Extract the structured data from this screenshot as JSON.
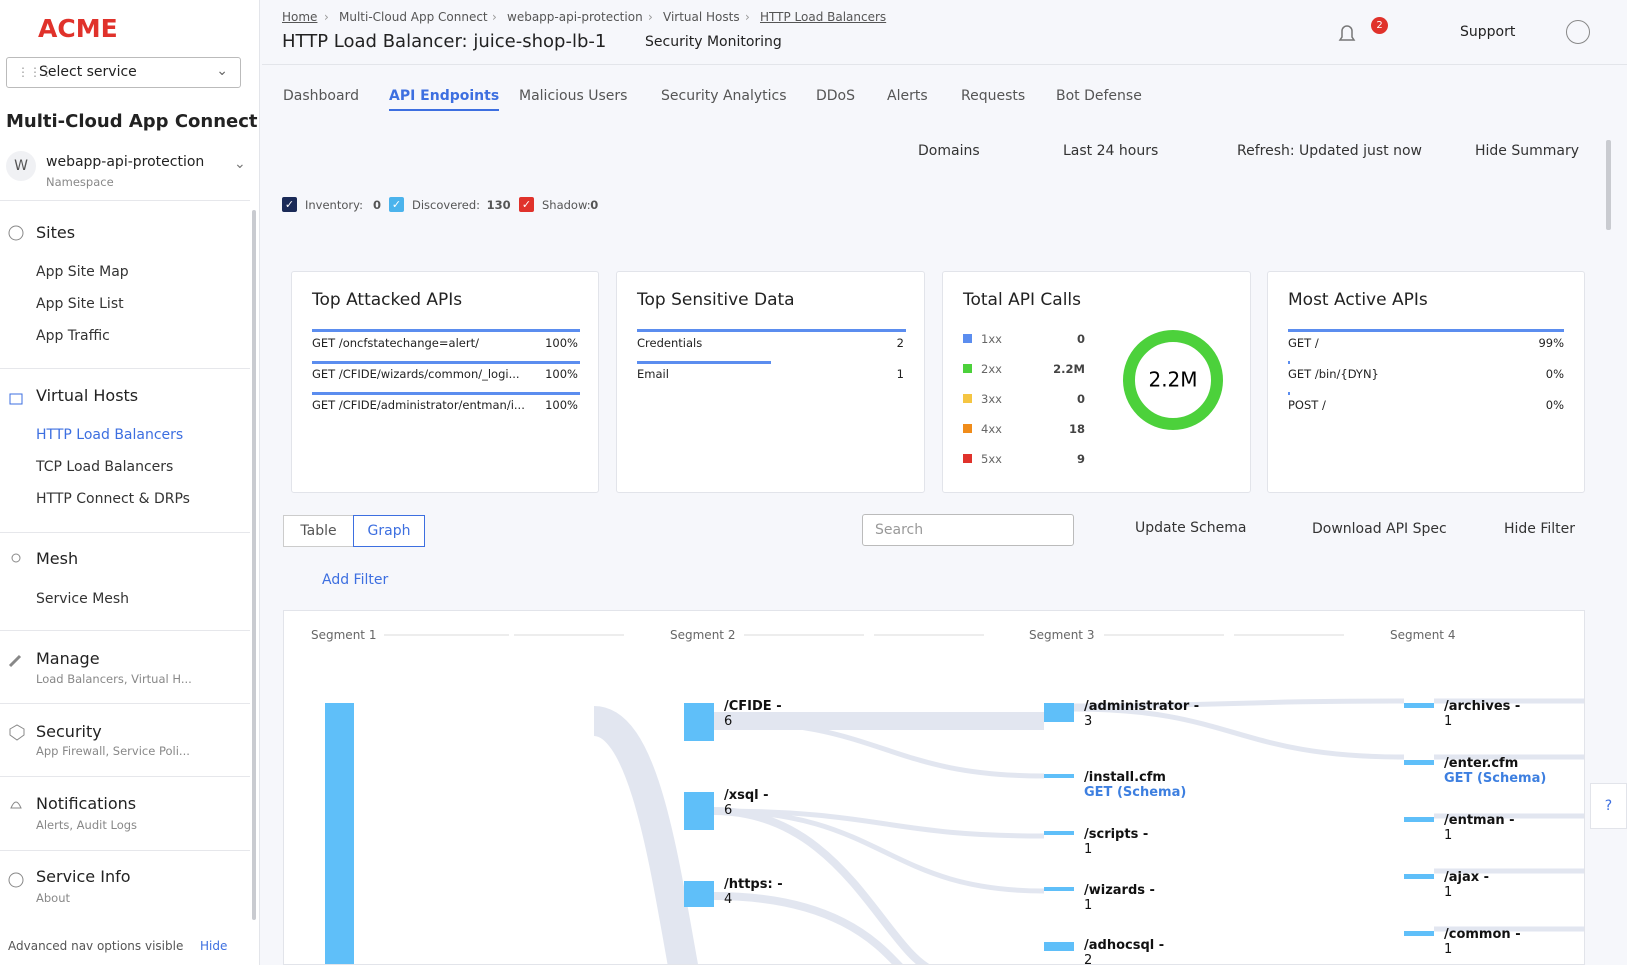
{
  "sidebar": {
    "logo": "ACME",
    "service_select": "Select service",
    "app_title": "Multi-Cloud App Connect",
    "namespace": {
      "avatar": "W",
      "name": "webapp-api-protection",
      "label": "Namespace"
    },
    "sections": [
      {
        "title": "Sites",
        "items": [
          "App Site Map",
          "App Site List",
          "App Traffic"
        ]
      },
      {
        "title": "Virtual Hosts",
        "items": [
          "HTTP Load Balancers",
          "TCP Load Balancers",
          "HTTP Connect & DRPs"
        ]
      },
      {
        "title": "Mesh",
        "items": [
          "Service Mesh"
        ]
      },
      {
        "title": "Manage",
        "subtitle": "Load Balancers, Virtual H..."
      },
      {
        "title": "Security",
        "subtitle": "App Firewall, Service Poli..."
      },
      {
        "title": "Notifications",
        "subtitle": "Alerts, Audit Logs"
      },
      {
        "title": "Service Info",
        "subtitle": "About"
      }
    ],
    "footer": {
      "text": "Advanced nav options visible",
      "link": "Hide"
    }
  },
  "header": {
    "breadcrumbs": [
      "Home",
      "Multi-Cloud App Connect",
      "webapp-api-protection",
      "Virtual Hosts",
      "HTTP Load Balancers"
    ],
    "title": "HTTP Load Balancer: juice-shop-lb-1",
    "view": "Security Monitoring",
    "notifications": "2",
    "support": "Support"
  },
  "tabs": [
    "Dashboard",
    "API Endpoints",
    "Malicious Users",
    "Security Analytics",
    "DDoS",
    "Alerts",
    "Requests",
    "Bot Defense"
  ],
  "toolbar": [
    "Domains",
    "Last 24 hours",
    "Refresh: Updated just now",
    "Hide Summary"
  ],
  "filters": [
    {
      "label": "Inventory:",
      "count": "0"
    },
    {
      "label": "Discovered:",
      "count": "130"
    },
    {
      "label": "Shadow:",
      "count": "0"
    }
  ],
  "cards": {
    "top_attacked": {
      "title": "Top Attacked APIs",
      "rows": [
        {
          "name": "GET /oncfstatechange=alert/",
          "value": "100%"
        },
        {
          "name": "GET /CFIDE/wizards/common/_logi...",
          "value": "100%"
        },
        {
          "name": "GET /CFIDE/administrator/entman/i...",
          "value": "100%"
        }
      ]
    },
    "sensitive": {
      "title": "Top Sensitive Data",
      "rows": [
        {
          "name": "Credentials",
          "value": "2"
        },
        {
          "name": "Email",
          "value": "1"
        }
      ]
    },
    "total_calls": {
      "title": "Total API Calls",
      "rows": [
        {
          "code": "1xx",
          "value": "0"
        },
        {
          "code": "2xx",
          "value": "2.2M"
        },
        {
          "code": "3xx",
          "value": "0"
        },
        {
          "code": "4xx",
          "value": "18"
        },
        {
          "code": "5xx",
          "value": "9"
        }
      ],
      "total": "2.2M"
    },
    "most_active": {
      "title": "Most Active APIs",
      "rows": [
        {
          "name": "GET /",
          "value": "99%"
        },
        {
          "name": "GET /bin/{DYN}",
          "value": "0%"
        },
        {
          "name": "POST /",
          "value": "0%"
        }
      ]
    }
  },
  "view_toggle": [
    "Table",
    "Graph"
  ],
  "search_placeholder": "Search",
  "actions": [
    "Update Schema",
    "Download API Spec",
    "Hide Filter"
  ],
  "add_filter": "Add Filter",
  "graph": {
    "segments": [
      "Segment 1",
      "Segment 2",
      "Segment 3",
      "Segment 4"
    ],
    "nodes": [
      [
        {
          "label": "/CFIDE -",
          "count": "6"
        },
        {
          "label": "/xsql -",
          "count": "6"
        },
        {
          "label": "/https: -",
          "count": "4"
        }
      ],
      [
        {
          "label": "/administrator -",
          "count": "3"
        },
        {
          "label": "/install.cfm",
          "method": "GET (Schema)"
        },
        {
          "label": "/scripts -",
          "count": "1"
        },
        {
          "label": "/wizards -",
          "count": "1"
        },
        {
          "label": "/adhocsql -",
          "count": "2"
        }
      ],
      [
        {
          "label": "/archives -",
          "count": "1"
        },
        {
          "label": "/enter.cfm",
          "method": "GET (Schema)"
        },
        {
          "label": "/entman -",
          "count": "1"
        },
        {
          "label": "/ajax -",
          "count": "1"
        },
        {
          "label": "/common -",
          "count": "1"
        }
      ]
    ]
  }
}
